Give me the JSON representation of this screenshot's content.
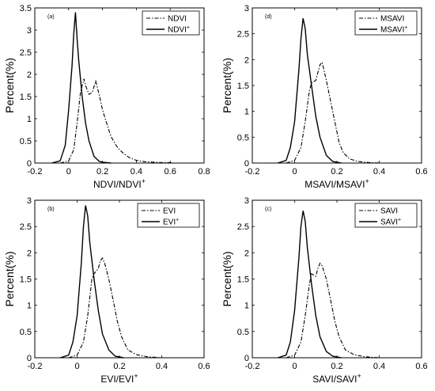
{
  "chart_data": [
    {
      "type": "line",
      "panel_tag": "(a)",
      "xlabel": "NDVI/NDVI",
      "xlabel_sup": "+",
      "ylabel": "Percent(%)",
      "xlim": [
        -0.2,
        0.8
      ],
      "ylim": [
        0,
        3.5
      ],
      "xticks": [
        "-0.2",
        "0",
        "0.2",
        "0.4",
        "0.6",
        "0.8"
      ],
      "xtick_values": [
        -0.2,
        0,
        0.2,
        0.4,
        0.6,
        0.8
      ],
      "yticks": [
        "0",
        "0.5",
        "1",
        "1.5",
        "2",
        "2.5",
        "3",
        "3.5"
      ],
      "ytick_values": [
        0,
        0.5,
        1,
        1.5,
        2,
        2.5,
        3,
        3.5
      ],
      "legend_position": "top-right",
      "series": [
        {
          "name": "NDVI",
          "name_sup": "",
          "style": "dash-dot",
          "x": [
            -0.05,
            0.0,
            0.03,
            0.05,
            0.07,
            0.09,
            0.1,
            0.12,
            0.14,
            0.16,
            0.18,
            0.2,
            0.22,
            0.25,
            0.28,
            0.3,
            0.33,
            0.36,
            0.4,
            0.45,
            0.5,
            0.55,
            0.6,
            0.62
          ],
          "y": [
            0.0,
            0.05,
            0.3,
            0.9,
            1.6,
            1.9,
            1.75,
            1.55,
            1.6,
            1.85,
            1.55,
            1.2,
            0.95,
            0.6,
            0.4,
            0.3,
            0.2,
            0.12,
            0.06,
            0.03,
            0.02,
            0.01,
            0.01,
            0.0
          ]
        },
        {
          "name": "NDVI",
          "name_sup": "+",
          "style": "solid",
          "x": [
            -0.1,
            -0.05,
            -0.02,
            0.0,
            0.02,
            0.03,
            0.04,
            0.05,
            0.06,
            0.08,
            0.1,
            0.12,
            0.15,
            0.18,
            0.2,
            0.25
          ],
          "y": [
            0.0,
            0.05,
            0.4,
            1.2,
            2.2,
            2.9,
            3.4,
            2.8,
            2.3,
            1.5,
            0.9,
            0.5,
            0.15,
            0.04,
            0.02,
            0.0
          ]
        }
      ]
    },
    {
      "type": "line",
      "panel_tag": "(d)",
      "xlabel": "MSAVI/MSAVI",
      "xlabel_sup": "+",
      "ylabel": "Percent(%)",
      "xlim": [
        -0.2,
        0.6
      ],
      "ylim": [
        0,
        3
      ],
      "xticks": [
        "-0.2",
        "0",
        "0.2",
        "0.4",
        "0.6"
      ],
      "xtick_values": [
        -0.2,
        0,
        0.2,
        0.4,
        0.6
      ],
      "yticks": [
        "0",
        "0.5",
        "1",
        "1.5",
        "2",
        "2.5",
        "3"
      ],
      "ytick_values": [
        0,
        0.5,
        1,
        1.5,
        2,
        2.5,
        3
      ],
      "legend_position": "top-right",
      "series": [
        {
          "name": "MSAVI",
          "name_sup": "",
          "style": "dash-dot",
          "x": [
            -0.04,
            0.0,
            0.03,
            0.05,
            0.07,
            0.08,
            0.1,
            0.12,
            0.13,
            0.15,
            0.17,
            0.19,
            0.21,
            0.23,
            0.26,
            0.3,
            0.35,
            0.4
          ],
          "y": [
            0.0,
            0.05,
            0.3,
            0.8,
            1.4,
            1.55,
            1.6,
            1.9,
            1.95,
            1.6,
            1.2,
            0.8,
            0.4,
            0.2,
            0.08,
            0.03,
            0.01,
            0.0
          ]
        },
        {
          "name": "MSAVI",
          "name_sup": "+",
          "style": "solid",
          "x": [
            -0.08,
            -0.04,
            -0.02,
            0.0,
            0.02,
            0.03,
            0.04,
            0.05,
            0.06,
            0.08,
            0.1,
            0.12,
            0.15,
            0.18,
            0.22
          ],
          "y": [
            0.0,
            0.05,
            0.3,
            0.8,
            1.8,
            2.4,
            2.8,
            2.6,
            2.1,
            1.5,
            0.9,
            0.5,
            0.15,
            0.03,
            0.0
          ]
        }
      ]
    },
    {
      "type": "line",
      "panel_tag": "(b)",
      "xlabel": "EVI/EVI",
      "xlabel_sup": "+",
      "ylabel": "Percent(%)",
      "xlim": [
        -0.2,
        0.6
      ],
      "ylim": [
        0,
        3
      ],
      "xticks": [
        "-0.2",
        "0",
        "0.2",
        "0.4",
        "0.6"
      ],
      "xtick_values": [
        -0.2,
        0,
        0.2,
        0.4,
        0.6
      ],
      "yticks": [
        "0",
        "0.5",
        "1",
        "1.5",
        "2",
        "2.5",
        "3"
      ],
      "ytick_values": [
        0,
        0.5,
        1,
        1.5,
        2,
        2.5,
        3
      ],
      "legend_position": "top-right",
      "series": [
        {
          "name": "EVI",
          "name_sup": "",
          "style": "dash-dot",
          "x": [
            -0.04,
            0.0,
            0.03,
            0.05,
            0.07,
            0.08,
            0.1,
            0.11,
            0.12,
            0.13,
            0.15,
            0.17,
            0.19,
            0.21,
            0.24,
            0.28,
            0.33,
            0.4
          ],
          "y": [
            0.0,
            0.05,
            0.3,
            0.8,
            1.5,
            1.6,
            1.7,
            1.85,
            1.9,
            1.8,
            1.5,
            1.1,
            0.7,
            0.4,
            0.15,
            0.06,
            0.02,
            0.0
          ]
        },
        {
          "name": "EVI",
          "name_sup": "+",
          "style": "solid",
          "x": [
            -0.08,
            -0.04,
            -0.02,
            0.0,
            0.02,
            0.03,
            0.04,
            0.05,
            0.06,
            0.08,
            0.1,
            0.12,
            0.15,
            0.18,
            0.22
          ],
          "y": [
            0.0,
            0.05,
            0.3,
            0.8,
            1.8,
            2.5,
            2.9,
            2.7,
            2.2,
            1.5,
            0.9,
            0.45,
            0.15,
            0.03,
            0.0
          ]
        }
      ]
    },
    {
      "type": "line",
      "panel_tag": "(c)",
      "xlabel": "SAVI/SAVI",
      "xlabel_sup": "+",
      "ylabel": "Percent(%)",
      "xlim": [
        -0.2,
        0.6
      ],
      "ylim": [
        0,
        3
      ],
      "xticks": [
        "-0.2",
        "0",
        "0.2",
        "0.4",
        "0.6"
      ],
      "xtick_values": [
        -0.2,
        0,
        0.2,
        0.4,
        0.6
      ],
      "yticks": [
        "0",
        "0.5",
        "1",
        "1.5",
        "2",
        "2.5",
        "3"
      ],
      "ytick_values": [
        0,
        0.5,
        1,
        1.5,
        2,
        2.5,
        3
      ],
      "legend_position": "top-right",
      "series": [
        {
          "name": "SAVI",
          "name_sup": "",
          "style": "dash-dot",
          "x": [
            -0.04,
            0.0,
            0.03,
            0.05,
            0.07,
            0.08,
            0.1,
            0.11,
            0.12,
            0.13,
            0.15,
            0.17,
            0.19,
            0.21,
            0.24,
            0.28,
            0.33,
            0.4
          ],
          "y": [
            0.0,
            0.05,
            0.3,
            0.8,
            1.4,
            1.6,
            1.55,
            1.7,
            1.8,
            1.75,
            1.5,
            1.1,
            0.7,
            0.4,
            0.15,
            0.06,
            0.02,
            0.0
          ]
        },
        {
          "name": "SAVI",
          "name_sup": "+",
          "style": "solid",
          "x": [
            -0.08,
            -0.04,
            -0.02,
            0.0,
            0.02,
            0.03,
            0.04,
            0.05,
            0.06,
            0.08,
            0.1,
            0.12,
            0.15,
            0.18,
            0.22
          ],
          "y": [
            0.0,
            0.05,
            0.3,
            0.9,
            1.9,
            2.5,
            2.8,
            2.6,
            2.1,
            1.4,
            0.8,
            0.4,
            0.12,
            0.03,
            0.0
          ]
        }
      ]
    }
  ]
}
